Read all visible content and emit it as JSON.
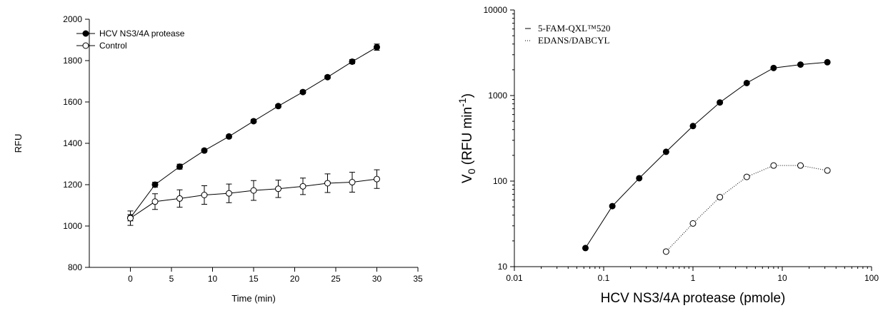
{
  "chart_data": [
    {
      "type": "line",
      "x_label": "Time (min)",
      "y_label": "RFU",
      "xlim": [
        -5,
        35
      ],
      "xticks": [
        0,
        5,
        10,
        15,
        20,
        25,
        30,
        35
      ],
      "ylim": [
        800,
        2000
      ],
      "yticks": [
        800,
        1000,
        1200,
        1400,
        1600,
        1800,
        2000
      ],
      "legend": "upper left",
      "series": [
        {
          "name": "HCV NS3/4A protease",
          "color": "#000000",
          "marker": "filled",
          "linestyle": "solid",
          "x": [
            0,
            3,
            6,
            9,
            12,
            15,
            18,
            21,
            24,
            27,
            30
          ],
          "values": [
            1040,
            1200,
            1287,
            1365,
            1433,
            1507,
            1580,
            1648,
            1720,
            1795,
            1865
          ],
          "errors": [
            15,
            12,
            12,
            8,
            8,
            8,
            8,
            8,
            8,
            10,
            15
          ]
        },
        {
          "name": "Control",
          "color": "#000000",
          "marker": "open",
          "linestyle": "solid",
          "x": [
            0,
            3,
            6,
            9,
            12,
            15,
            18,
            21,
            24,
            27,
            30
          ],
          "values": [
            1038,
            1118,
            1133,
            1150,
            1158,
            1172,
            1180,
            1192,
            1207,
            1212,
            1227
          ],
          "errors": [
            35,
            38,
            42,
            45,
            45,
            48,
            42,
            40,
            45,
            48,
            45
          ]
        }
      ]
    },
    {
      "type": "line",
      "x_label": "HCV NS3/4A protease (pmole)",
      "y_label": {
        "main": "V",
        "sub": "0",
        "rest": " (RFU min",
        "sup": "-1",
        "end": ")"
      },
      "xscale": "log",
      "yscale": "log",
      "xlim": [
        0.01,
        100
      ],
      "xticks": [
        0.01,
        0.1,
        1,
        10,
        100
      ],
      "ylim": [
        10,
        10000
      ],
      "yticks": [
        10,
        100,
        1000,
        10000
      ],
      "legend": "upper left",
      "series": [
        {
          "name": "5-FAM-QXL™520",
          "color": "#000000",
          "marker": "filled",
          "linestyle": "solid",
          "x": [
            0.0625,
            0.125,
            0.25,
            0.5,
            1,
            2,
            4,
            8,
            16,
            32
          ],
          "values": [
            16.5,
            51,
            108,
            220,
            440,
            830,
            1400,
            2100,
            2300,
            2450
          ]
        },
        {
          "name": "EDANS/DABCYL",
          "color": "#000000",
          "marker": "open",
          "linestyle": "dotted",
          "x": [
            0.5,
            1,
            2,
            4,
            8,
            16,
            32
          ],
          "values": [
            15,
            32,
            65,
            112,
            152,
            152,
            133
          ]
        }
      ]
    }
  ]
}
